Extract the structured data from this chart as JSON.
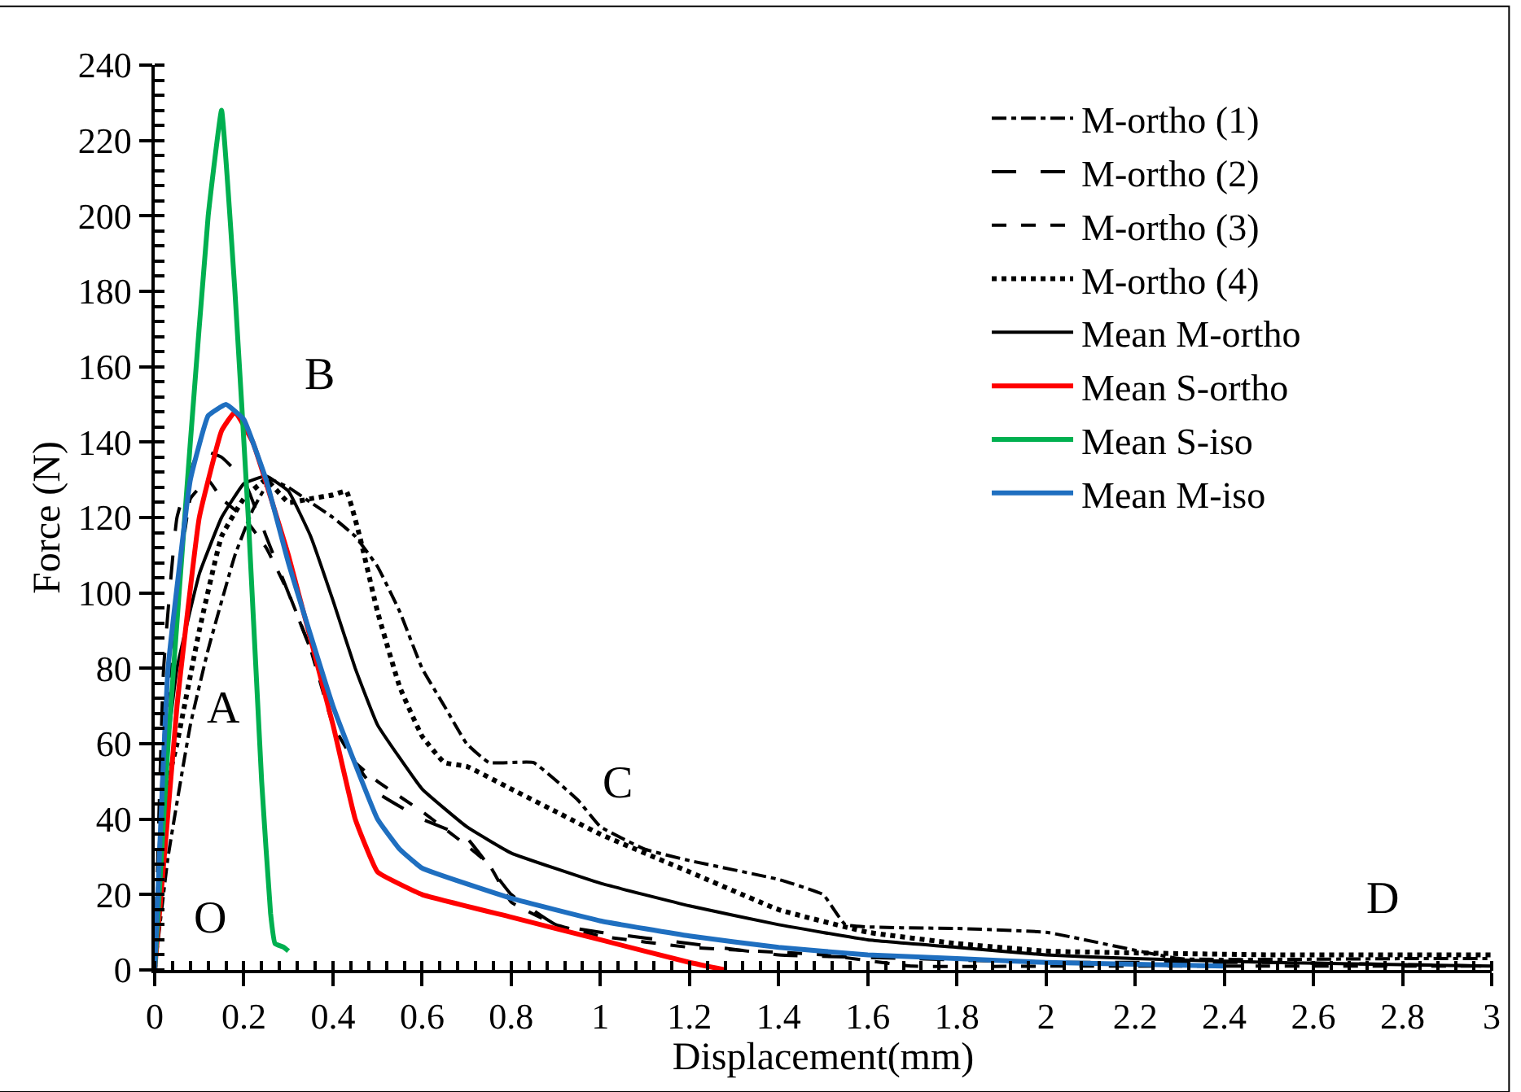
{
  "chart_data": {
    "type": "line",
    "xlabel": "Displacement(mm)",
    "ylabel": "Force (N)",
    "xlim": [
      0,
      3
    ],
    "ylim": [
      0,
      240
    ],
    "xticks": [
      0,
      0.2,
      0.4,
      0.6,
      0.8,
      1,
      1.2,
      1.4,
      1.6,
      1.8,
      2,
      2.2,
      2.4,
      2.6,
      2.8,
      3
    ],
    "yticks": [
      0,
      20,
      40,
      60,
      80,
      100,
      120,
      140,
      160,
      180,
      200,
      220,
      240
    ],
    "grid": false,
    "legend": "top right",
    "marker": "none",
    "series": [
      {
        "name": "M-ortho (1)",
        "color": "#000000",
        "line_style": "dashdot",
        "x": [
          0,
          0.03,
          0.08,
          0.12,
          0.18,
          0.22,
          0.26,
          0.3,
          0.35,
          0.4,
          0.45,
          0.5,
          0.55,
          0.6,
          0.65,
          0.7,
          0.75,
          0.85,
          0.95,
          1,
          1.1,
          1.2,
          1.4,
          1.5,
          1.55,
          1.8,
          2,
          2.3,
          2.8,
          3
        ],
        "values": [
          0,
          30,
          65,
          85,
          110,
          122,
          130,
          128,
          124,
          120,
          115,
          107,
          95,
          80,
          70,
          60,
          55,
          55,
          45,
          38,
          32,
          29,
          24,
          20,
          12,
          11,
          10,
          3,
          3,
          3
        ]
      },
      {
        "name": "M-ortho (2)",
        "color": "#000000",
        "line_style": "longdash",
        "x": [
          0,
          0.02,
          0.05,
          0.1,
          0.15,
          0.2,
          0.25,
          0.3,
          0.35,
          0.4,
          0.45,
          0.5,
          0.6,
          0.7,
          0.8,
          0.9,
          1,
          1.2,
          1.4,
          1.7,
          2,
          2.5,
          3
        ],
        "values": [
          0,
          80,
          120,
          138,
          136,
          130,
          115,
          100,
          85,
          70,
          55,
          47,
          40,
          35,
          20,
          12,
          10,
          7,
          4,
          3,
          2,
          2,
          1
        ]
      },
      {
        "name": "M-ortho (3)",
        "color": "#000000",
        "line_style": "dashed",
        "x": [
          0,
          0.02,
          0.05,
          0.08,
          0.12,
          0.15,
          0.2,
          0.25,
          0.3,
          0.35,
          0.4,
          0.45,
          0.5,
          0.6,
          0.7,
          0.75,
          0.8,
          0.9,
          1,
          1.2,
          1.5,
          1.7,
          2,
          2.5,
          3
        ],
        "values": [
          0,
          60,
          100,
          125,
          130,
          125,
          120,
          112,
          100,
          85,
          65,
          55,
          50,
          42,
          33,
          28,
          18,
          12,
          9,
          6,
          4,
          1,
          1,
          1,
          1
        ]
      },
      {
        "name": "M-ortho (4)",
        "color": "#000000",
        "line_style": "dotted",
        "x": [
          0,
          0.02,
          0.05,
          0.1,
          0.15,
          0.2,
          0.25,
          0.3,
          0.35,
          0.4,
          0.43,
          0.46,
          0.5,
          0.55,
          0.6,
          0.65,
          0.7,
          0.8,
          0.9,
          1,
          1.2,
          1.4,
          1.6,
          1.8,
          2,
          2.5,
          3
        ],
        "values": [
          0,
          45,
          60,
          90,
          115,
          125,
          130,
          124,
          125,
          126,
          127,
          115,
          95,
          75,
          62,
          55,
          54,
          48,
          42,
          36,
          26,
          16,
          10,
          7,
          5,
          4,
          4
        ]
      },
      {
        "name": "Mean M-ortho",
        "color": "#000000",
        "line_style": "solid",
        "x": [
          0,
          0.02,
          0.05,
          0.1,
          0.15,
          0.2,
          0.25,
          0.3,
          0.35,
          0.4,
          0.45,
          0.5,
          0.6,
          0.7,
          0.8,
          1,
          1.2,
          1.4,
          1.6,
          1.8,
          2,
          2.2,
          2.5,
          3
        ],
        "values": [
          0,
          50,
          80,
          105,
          120,
          129,
          131,
          127,
          115,
          98,
          80,
          65,
          48,
          38,
          31,
          23,
          17,
          12,
          8,
          6,
          4,
          3,
          2,
          1
        ]
      },
      {
        "name": "Mean S-ortho",
        "color": "#ff0000",
        "line_style": "solid",
        "x": [
          0,
          0.05,
          0.1,
          0.15,
          0.18,
          0.22,
          0.3,
          0.4,
          0.45,
          0.5,
          0.6,
          0.8,
          1,
          1.2,
          1.28
        ],
        "values": [
          0,
          70,
          120,
          143,
          148,
          140,
          110,
          65,
          40,
          26,
          20,
          14,
          8,
          2,
          0
        ]
      },
      {
        "name": "Mean S-iso",
        "color": "#00b050",
        "line_style": "solid",
        "x": [
          0,
          0.03,
          0.08,
          0.12,
          0.15,
          0.18,
          0.21,
          0.24,
          0.26,
          0.27,
          0.29,
          0.3
        ],
        "values": [
          0,
          60,
          140,
          200,
          228,
          180,
          120,
          50,
          15,
          7,
          6,
          5
        ]
      },
      {
        "name": "Mean M-iso",
        "color": "#1f6fc0",
        "line_style": "solid",
        "x": [
          0,
          0.03,
          0.08,
          0.12,
          0.16,
          0.2,
          0.25,
          0.3,
          0.4,
          0.5,
          0.55,
          0.6,
          0.8,
          1,
          1.2,
          1.4,
          1.6,
          1.8,
          2,
          2.4
        ],
        "values": [
          0,
          80,
          130,
          147,
          150,
          146,
          130,
          108,
          70,
          40,
          32,
          27,
          19,
          13,
          9,
          6,
          4,
          3,
          2,
          1
        ]
      }
    ],
    "annotations": [
      "O",
      "A",
      "B",
      "C",
      "D"
    ]
  }
}
